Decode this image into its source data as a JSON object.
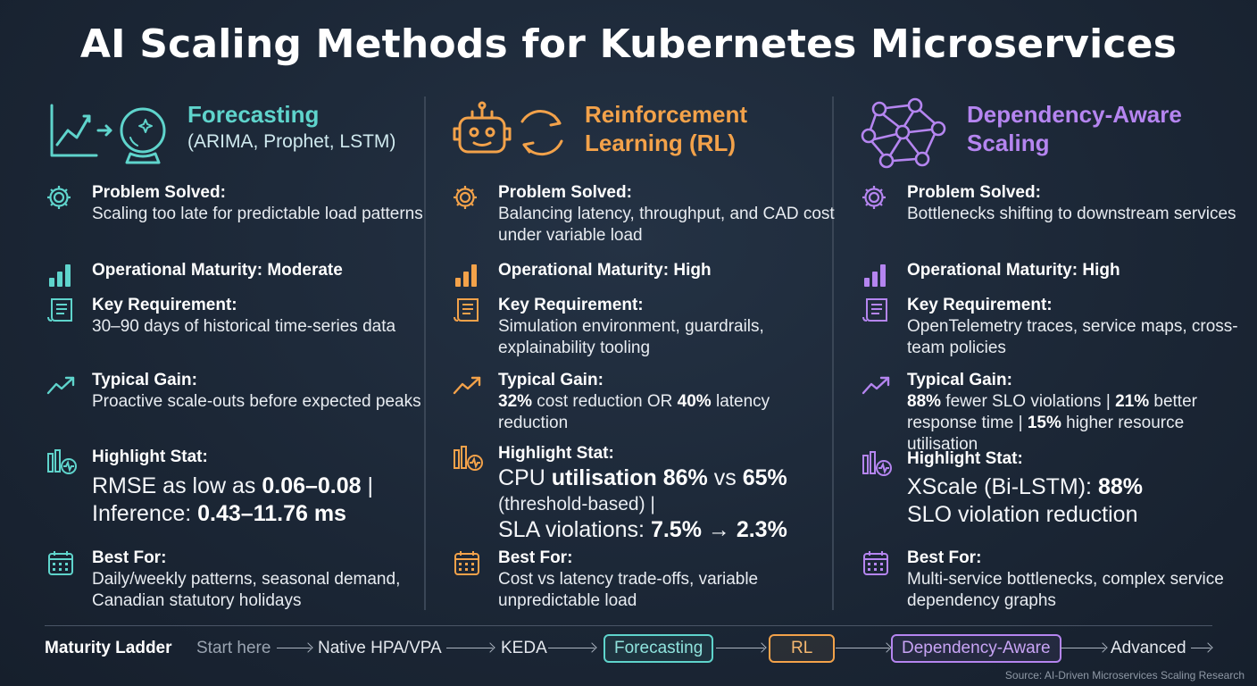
{
  "title": "AI Scaling Methods for Kubernetes Microservices",
  "colors": {
    "teal": "#5fd4cc",
    "orange": "#f3a24a",
    "purple": "#b585f0",
    "background": "#1b2635"
  },
  "columns": [
    {
      "name": "Forecasting",
      "subtitle": "(ARIMA, Prophet, LSTM)",
      "header_icons": [
        "line-chart-icon",
        "crystal-ball-icon"
      ],
      "problem_label": "Problem Solved:",
      "problem_text": "Scaling too late for predictable load patterns",
      "maturity_label": "Operational Maturity: Moderate",
      "requirement_label": "Key Requirement:",
      "requirement_text": "30–90 days of historical time-series data",
      "gain_label": "Typical Gain:",
      "gain_text": "Proactive scale-outs before expected peaks",
      "stat_label": "Highlight Stat:",
      "stat_line1_a": "RMSE as low as ",
      "stat_line1_b": "0.06–0.08",
      "stat_line1_c": " |",
      "stat_line2_a": "Inference: ",
      "stat_line2_b": "0.43–11.76 ms",
      "best_label": "Best For:",
      "best_text": "Daily/weekly patterns, seasonal demand, Canadian statutory holidays"
    },
    {
      "name_line1": "Reinforcement",
      "name_line2": "Learning (RL)",
      "header_icons": [
        "robot-icon",
        "refresh-cycle-icon"
      ],
      "problem_label": "Problem Solved:",
      "problem_text": "Balancing latency, throughput, and CAD cost under variable load",
      "maturity_label": "Operational Maturity: High",
      "requirement_label": "Key Requirement:",
      "requirement_text": "Simulation environment, guardrails, explainability tooling",
      "gain_label": "Typical Gain:",
      "gain_a": "32%",
      "gain_b": " cost reduction OR ",
      "gain_c": "40%",
      "gain_d": " latency reduction",
      "stat_label": "Highlight Stat:",
      "stat_line1_a": "CPU ",
      "stat_line1_b": "utilisation 86%",
      "stat_line1_c": " vs ",
      "stat_line1_d": "65%",
      "stat_line2": "(threshold-based) |",
      "stat_line3_a": "SLA violations: ",
      "stat_line3_b": "7.5%",
      "stat_line3_c": " → ",
      "stat_line3_d": "2.3%",
      "best_label": "Best For:",
      "best_text": "Cost vs latency trade-offs, variable unpredictable load"
    },
    {
      "name_line1": "Dependency-Aware",
      "name_line2": "Scaling",
      "header_icons": [
        "network-graph-icon"
      ],
      "problem_label": "Problem Solved:",
      "problem_text": "Bottlenecks shifting to downstream services",
      "maturity_label": "Operational Maturity: High",
      "requirement_label": "Key Requirement:",
      "requirement_text": "OpenTelemetry traces, service maps, cross-team policies",
      "gain_label": "Typical Gain:",
      "gain_a": "88%",
      "gain_b": " fewer SLO violations | ",
      "gain_c": "21%",
      "gain_d": " better response time | ",
      "gain_e": "15%",
      "gain_f": " higher resource utilisation",
      "stat_label": "Highlight Stat:",
      "stat_line1_a": "XScale (Bi-LSTM): ",
      "stat_line1_b": "88%",
      "stat_line2": "SLO violation reduction",
      "best_label": "Best For:",
      "best_text": "Multi-service bottlenecks, complex service dependency graphs"
    }
  ],
  "ladder": {
    "label": "Maturity Ladder",
    "start": "Start here",
    "steps": [
      "Native HPA/VPA",
      "KEDA",
      "Forecasting",
      "RL",
      "Dependency-Aware",
      "Advanced"
    ]
  },
  "source": "Source: AI-Driven Microservices Scaling Research"
}
